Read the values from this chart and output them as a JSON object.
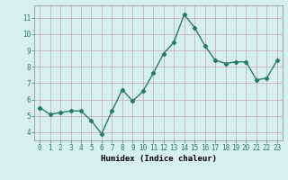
{
  "x": [
    0,
    1,
    2,
    3,
    4,
    5,
    6,
    7,
    8,
    9,
    10,
    11,
    12,
    13,
    14,
    15,
    16,
    17,
    18,
    19,
    20,
    21,
    22,
    23
  ],
  "y": [
    5.5,
    5.1,
    5.2,
    5.3,
    5.3,
    4.7,
    3.9,
    5.3,
    6.6,
    5.9,
    6.5,
    7.6,
    8.8,
    9.5,
    11.2,
    10.4,
    9.3,
    8.4,
    8.2,
    8.3,
    8.3,
    7.2,
    7.3,
    8.4
  ],
  "xlabel": "Humidex (Indice chaleur)",
  "xlim": [
    -0.5,
    23.5
  ],
  "ylim": [
    3.5,
    11.75
  ],
  "yticks": [
    4,
    5,
    6,
    7,
    8,
    9,
    10,
    11
  ],
  "xticks": [
    0,
    1,
    2,
    3,
    4,
    5,
    6,
    7,
    8,
    9,
    10,
    11,
    12,
    13,
    14,
    15,
    16,
    17,
    18,
    19,
    20,
    21,
    22,
    23
  ],
  "line_color": "#2a7a6a",
  "marker": "D",
  "marker_size": 2.2,
  "bg_color": "#d6f0ee",
  "grid_color": "#c8a8a8",
  "tick_label_fontsize": 5.5,
  "xlabel_fontsize": 6.5,
  "line_width": 1.0
}
